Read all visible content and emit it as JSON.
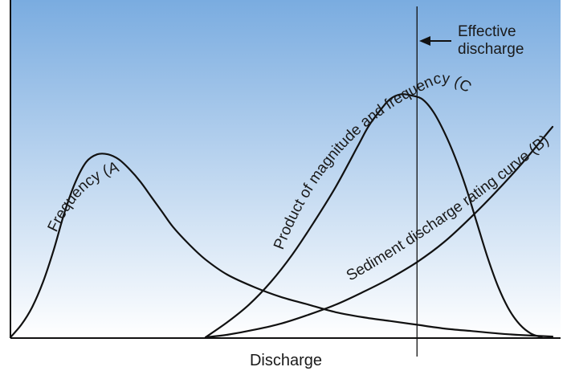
{
  "chart_data": {
    "type": "line",
    "title": "",
    "xlabel": "Discharge",
    "ylabel": "",
    "xlim": [
      0,
      100
    ],
    "ylim": [
      0,
      100
    ],
    "grid": false,
    "legend": "none",
    "background_gradient": [
      "#7aace0",
      "#ffffff"
    ],
    "line_color": "#111111",
    "series": [
      {
        "name": "Frequency (A)",
        "x": [
          0,
          2,
          4,
          6,
          8,
          10,
          12,
          14,
          16,
          18,
          20,
          22,
          24,
          26,
          28,
          30,
          33,
          36,
          40,
          45,
          50,
          55,
          60,
          65,
          70,
          75,
          80,
          85,
          90,
          95,
          100
        ],
        "y": [
          0,
          5,
          12,
          22,
          35,
          50,
          62,
          70,
          73,
          73,
          71,
          67,
          62,
          56,
          50,
          44,
          37,
          31,
          25,
          20,
          16,
          13,
          10,
          8,
          6.5,
          5,
          3.5,
          2.5,
          1.5,
          0.8,
          0.3
        ]
      },
      {
        "name": "Sediment discharge rating curve (B)",
        "x": [
          36,
          40,
          45,
          50,
          55,
          60,
          65,
          70,
          75,
          80,
          85,
          90,
          95,
          100
        ],
        "y": [
          0,
          1,
          3,
          5.5,
          9,
          13,
          18,
          23.5,
          30,
          38,
          48,
          59,
          71,
          84
        ]
      },
      {
        "name": "Product of magnitude and frequency (C)",
        "x": [
          36,
          40,
          44,
          48,
          52,
          56,
          60,
          64,
          66,
          68,
          70,
          72,
          74,
          76,
          78,
          80,
          82,
          84,
          86,
          88,
          90,
          92,
          94,
          96,
          98
        ],
        "y": [
          0,
          6,
          13,
          22,
          33,
          46,
          60,
          76,
          84,
          90,
          95,
          97,
          96.5,
          95,
          90,
          82,
          72,
          60,
          46,
          32,
          20,
          11,
          5,
          1.5,
          0
        ]
      }
    ],
    "annotations": [
      {
        "text": [
          "Effective",
          "discharge"
        ],
        "x": 75
      }
    ]
  }
}
